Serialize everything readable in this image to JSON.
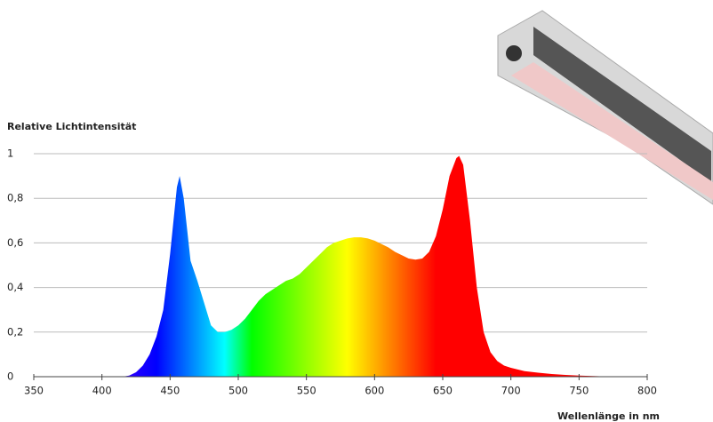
{
  "chart_data": {
    "type": "area",
    "title": "Relative Lichtintensität",
    "x_label": "Wellenlänge in nm",
    "x": [
      415,
      420,
      425,
      430,
      435,
      440,
      445,
      450,
      455,
      457,
      460,
      465,
      470,
      475,
      480,
      485,
      490,
      495,
      500,
      505,
      510,
      515,
      520,
      525,
      530,
      535,
      540,
      545,
      550,
      555,
      560,
      565,
      570,
      575,
      580,
      585,
      590,
      595,
      600,
      605,
      610,
      615,
      620,
      625,
      630,
      635,
      640,
      645,
      650,
      655,
      660,
      662,
      665,
      670,
      675,
      680,
      685,
      690,
      695,
      700,
      710,
      720,
      730,
      740,
      750,
      760,
      770,
      780
    ],
    "values": [
      0,
      0.005,
      0.02,
      0.05,
      0.1,
      0.18,
      0.3,
      0.55,
      0.85,
      0.9,
      0.8,
      0.52,
      0.43,
      0.33,
      0.23,
      0.2,
      0.2,
      0.21,
      0.23,
      0.26,
      0.3,
      0.34,
      0.37,
      0.39,
      0.41,
      0.43,
      0.44,
      0.46,
      0.49,
      0.52,
      0.55,
      0.58,
      0.6,
      0.61,
      0.62,
      0.625,
      0.625,
      0.62,
      0.61,
      0.595,
      0.58,
      0.56,
      0.545,
      0.53,
      0.525,
      0.53,
      0.56,
      0.63,
      0.75,
      0.9,
      0.98,
      0.99,
      0.95,
      0.7,
      0.4,
      0.2,
      0.11,
      0.07,
      0.05,
      0.04,
      0.025,
      0.018,
      0.012,
      0.008,
      0.005,
      0.003,
      0.001,
      0
    ],
    "xlim": [
      350,
      800
    ],
    "xticks": [
      350,
      400,
      450,
      500,
      550,
      600,
      650,
      700,
      750,
      800
    ],
    "ylim": [
      0,
      1
    ],
    "yticks": [
      0,
      {
        "value": 0.2,
        "label": "0,2"
      },
      {
        "value": 0.4,
        "label": "0,4"
      },
      {
        "value": 0.6,
        "label": "0,6"
      },
      {
        "value": 0.8,
        "label": "0,8"
      },
      1
    ],
    "grid": true
  }
}
